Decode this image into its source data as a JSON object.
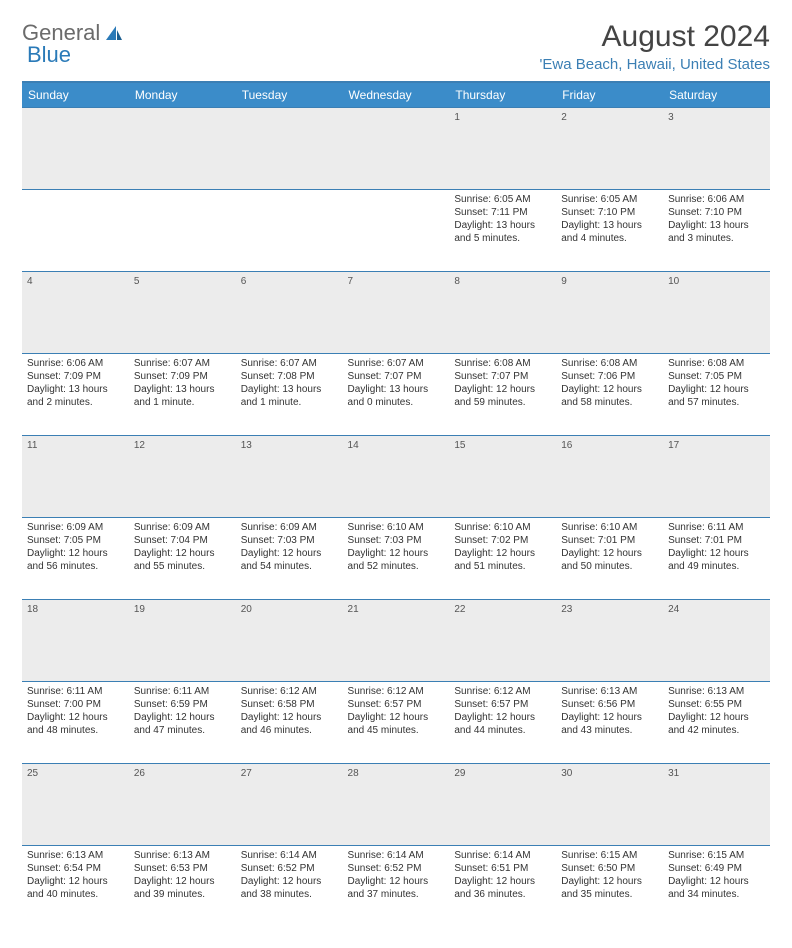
{
  "logo": {
    "text1": "General",
    "text2": "Blue"
  },
  "title": "August 2024",
  "location": "'Ewa Beach, Hawaii, United States",
  "colors": {
    "header_bg": "#3b8cc9",
    "header_text": "#ffffff",
    "border": "#3b7fb4",
    "daynum_bg": "#ececec",
    "link": "#3b7fb4",
    "logo_gray": "#6b6b6b"
  },
  "weekdays": [
    "Sunday",
    "Monday",
    "Tuesday",
    "Wednesday",
    "Thursday",
    "Friday",
    "Saturday"
  ],
  "weeks": [
    {
      "nums": [
        "",
        "",
        "",
        "",
        "1",
        "2",
        "3"
      ],
      "cells": [
        {
          "sunrise": "",
          "sunset": "",
          "daylight": ""
        },
        {
          "sunrise": "",
          "sunset": "",
          "daylight": ""
        },
        {
          "sunrise": "",
          "sunset": "",
          "daylight": ""
        },
        {
          "sunrise": "",
          "sunset": "",
          "daylight": ""
        },
        {
          "sunrise": "Sunrise: 6:05 AM",
          "sunset": "Sunset: 7:11 PM",
          "daylight": "Daylight: 13 hours and 5 minutes."
        },
        {
          "sunrise": "Sunrise: 6:05 AM",
          "sunset": "Sunset: 7:10 PM",
          "daylight": "Daylight: 13 hours and 4 minutes."
        },
        {
          "sunrise": "Sunrise: 6:06 AM",
          "sunset": "Sunset: 7:10 PM",
          "daylight": "Daylight: 13 hours and 3 minutes."
        }
      ]
    },
    {
      "nums": [
        "4",
        "5",
        "6",
        "7",
        "8",
        "9",
        "10"
      ],
      "cells": [
        {
          "sunrise": "Sunrise: 6:06 AM",
          "sunset": "Sunset: 7:09 PM",
          "daylight": "Daylight: 13 hours and 2 minutes."
        },
        {
          "sunrise": "Sunrise: 6:07 AM",
          "sunset": "Sunset: 7:09 PM",
          "daylight": "Daylight: 13 hours and 1 minute."
        },
        {
          "sunrise": "Sunrise: 6:07 AM",
          "sunset": "Sunset: 7:08 PM",
          "daylight": "Daylight: 13 hours and 1 minute."
        },
        {
          "sunrise": "Sunrise: 6:07 AM",
          "sunset": "Sunset: 7:07 PM",
          "daylight": "Daylight: 13 hours and 0 minutes."
        },
        {
          "sunrise": "Sunrise: 6:08 AM",
          "sunset": "Sunset: 7:07 PM",
          "daylight": "Daylight: 12 hours and 59 minutes."
        },
        {
          "sunrise": "Sunrise: 6:08 AM",
          "sunset": "Sunset: 7:06 PM",
          "daylight": "Daylight: 12 hours and 58 minutes."
        },
        {
          "sunrise": "Sunrise: 6:08 AM",
          "sunset": "Sunset: 7:05 PM",
          "daylight": "Daylight: 12 hours and 57 minutes."
        }
      ]
    },
    {
      "nums": [
        "11",
        "12",
        "13",
        "14",
        "15",
        "16",
        "17"
      ],
      "cells": [
        {
          "sunrise": "Sunrise: 6:09 AM",
          "sunset": "Sunset: 7:05 PM",
          "daylight": "Daylight: 12 hours and 56 minutes."
        },
        {
          "sunrise": "Sunrise: 6:09 AM",
          "sunset": "Sunset: 7:04 PM",
          "daylight": "Daylight: 12 hours and 55 minutes."
        },
        {
          "sunrise": "Sunrise: 6:09 AM",
          "sunset": "Sunset: 7:03 PM",
          "daylight": "Daylight: 12 hours and 54 minutes."
        },
        {
          "sunrise": "Sunrise: 6:10 AM",
          "sunset": "Sunset: 7:03 PM",
          "daylight": "Daylight: 12 hours and 52 minutes."
        },
        {
          "sunrise": "Sunrise: 6:10 AM",
          "sunset": "Sunset: 7:02 PM",
          "daylight": "Daylight: 12 hours and 51 minutes."
        },
        {
          "sunrise": "Sunrise: 6:10 AM",
          "sunset": "Sunset: 7:01 PM",
          "daylight": "Daylight: 12 hours and 50 minutes."
        },
        {
          "sunrise": "Sunrise: 6:11 AM",
          "sunset": "Sunset: 7:01 PM",
          "daylight": "Daylight: 12 hours and 49 minutes."
        }
      ]
    },
    {
      "nums": [
        "18",
        "19",
        "20",
        "21",
        "22",
        "23",
        "24"
      ],
      "cells": [
        {
          "sunrise": "Sunrise: 6:11 AM",
          "sunset": "Sunset: 7:00 PM",
          "daylight": "Daylight: 12 hours and 48 minutes."
        },
        {
          "sunrise": "Sunrise: 6:11 AM",
          "sunset": "Sunset: 6:59 PM",
          "daylight": "Daylight: 12 hours and 47 minutes."
        },
        {
          "sunrise": "Sunrise: 6:12 AM",
          "sunset": "Sunset: 6:58 PM",
          "daylight": "Daylight: 12 hours and 46 minutes."
        },
        {
          "sunrise": "Sunrise: 6:12 AM",
          "sunset": "Sunset: 6:57 PM",
          "daylight": "Daylight: 12 hours and 45 minutes."
        },
        {
          "sunrise": "Sunrise: 6:12 AM",
          "sunset": "Sunset: 6:57 PM",
          "daylight": "Daylight: 12 hours and 44 minutes."
        },
        {
          "sunrise": "Sunrise: 6:13 AM",
          "sunset": "Sunset: 6:56 PM",
          "daylight": "Daylight: 12 hours and 43 minutes."
        },
        {
          "sunrise": "Sunrise: 6:13 AM",
          "sunset": "Sunset: 6:55 PM",
          "daylight": "Daylight: 12 hours and 42 minutes."
        }
      ]
    },
    {
      "nums": [
        "25",
        "26",
        "27",
        "28",
        "29",
        "30",
        "31"
      ],
      "cells": [
        {
          "sunrise": "Sunrise: 6:13 AM",
          "sunset": "Sunset: 6:54 PM",
          "daylight": "Daylight: 12 hours and 40 minutes."
        },
        {
          "sunrise": "Sunrise: 6:13 AM",
          "sunset": "Sunset: 6:53 PM",
          "daylight": "Daylight: 12 hours and 39 minutes."
        },
        {
          "sunrise": "Sunrise: 6:14 AM",
          "sunset": "Sunset: 6:52 PM",
          "daylight": "Daylight: 12 hours and 38 minutes."
        },
        {
          "sunrise": "Sunrise: 6:14 AM",
          "sunset": "Sunset: 6:52 PM",
          "daylight": "Daylight: 12 hours and 37 minutes."
        },
        {
          "sunrise": "Sunrise: 6:14 AM",
          "sunset": "Sunset: 6:51 PM",
          "daylight": "Daylight: 12 hours and 36 minutes."
        },
        {
          "sunrise": "Sunrise: 6:15 AM",
          "sunset": "Sunset: 6:50 PM",
          "daylight": "Daylight: 12 hours and 35 minutes."
        },
        {
          "sunrise": "Sunrise: 6:15 AM",
          "sunset": "Sunset: 6:49 PM",
          "daylight": "Daylight: 12 hours and 34 minutes."
        }
      ]
    }
  ]
}
